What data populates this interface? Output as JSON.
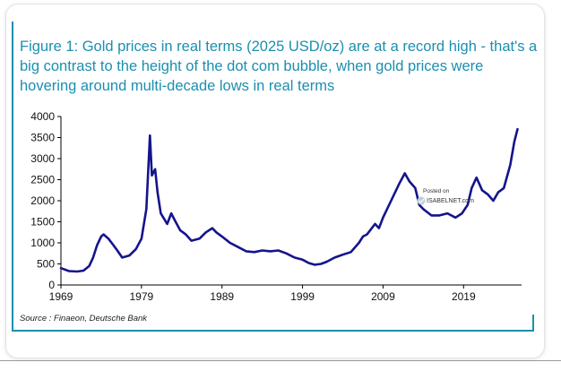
{
  "chart_data": {
    "type": "line",
    "title": "Figure 1: Gold prices in real terms (2025 USD/oz) are at a record high - that's a big contrast to the height of the dot com bubble, when gold prices were hovering around multi-decade lows in real terms",
    "title_lines": [
      "Figure 1: Gold prices in real terms (2025 USD/oz) are at a record high - that's a",
      "big contrast to the height of the dot com bubble, when gold prices were",
      "hovering around multi-decade lows in real terms"
    ],
    "xlabel": "",
    "ylabel": "",
    "xlim": [
      1969,
      2026.2
    ],
    "ylim": [
      0,
      4000
    ],
    "x_ticks": [
      1969,
      1979,
      1989,
      1999,
      2009,
      2019
    ],
    "x_tick_labels": [
      "1969",
      "1979",
      "1989",
      "1999",
      "2009",
      "2019"
    ],
    "y_ticks": [
      0,
      500,
      1000,
      1500,
      2000,
      2500,
      3000,
      3500,
      4000
    ],
    "y_tick_labels": [
      "0",
      "500",
      "1000",
      "1500",
      "2000",
      "2500",
      "3000",
      "3500",
      "4000"
    ],
    "grid": false,
    "line_color": "#14148c",
    "series": [
      {
        "name": "Gold price in real terms (2025 USD/oz)",
        "x": [
          1969,
          1970,
          1971,
          1971.8,
          1972.5,
          1973,
          1973.5,
          1974,
          1974.3,
          1974.9,
          1975.5,
          1976,
          1976.6,
          1977.5,
          1978.3,
          1979,
          1979.6,
          1980.05,
          1980.3,
          1980.7,
          1981,
          1981.4,
          1982.2,
          1982.7,
          1983.1,
          1983.8,
          1984.5,
          1985.2,
          1986.2,
          1987,
          1987.8,
          1988.3,
          1989,
          1990,
          1991,
          1992,
          1993,
          1994,
          1995,
          1996,
          1997,
          1998,
          1999,
          1999.8,
          2000.5,
          2001.3,
          2002,
          2003,
          2004,
          2005,
          2006,
          2006.5,
          2007,
          2008,
          2008.5,
          2009,
          2010,
          2011,
          2011.7,
          2012.3,
          2013,
          2013.5,
          2014,
          2015,
          2016,
          2017,
          2018,
          2018.8,
          2019.5,
          2020,
          2020.6,
          2021.3,
          2022,
          2022.7,
          2023.3,
          2024,
          2024.8,
          2025.3,
          2025.7
        ],
        "values": [
          400,
          330,
          320,
          340,
          450,
          650,
          950,
          1150,
          1200,
          1100,
          950,
          820,
          650,
          700,
          850,
          1100,
          1800,
          3550,
          2600,
          2750,
          2200,
          1700,
          1450,
          1700,
          1550,
          1300,
          1200,
          1050,
          1100,
          1250,
          1350,
          1250,
          1150,
          1000,
          900,
          800,
          780,
          820,
          800,
          820,
          750,
          650,
          600,
          520,
          480,
          500,
          550,
          650,
          720,
          780,
          1000,
          1150,
          1200,
          1450,
          1350,
          1600,
          2000,
          2400,
          2650,
          2450,
          2300,
          1900,
          1800,
          1650,
          1650,
          1700,
          1600,
          1700,
          1900,
          2300,
          2550,
          2250,
          2150,
          2000,
          2200,
          2300,
          2850,
          3400,
          3700
        ]
      }
    ],
    "source": "Source : Finaeon, Deutsche Bank",
    "watermark": {
      "line1": "Posted on",
      "line2": "ISABELNET.com"
    }
  }
}
